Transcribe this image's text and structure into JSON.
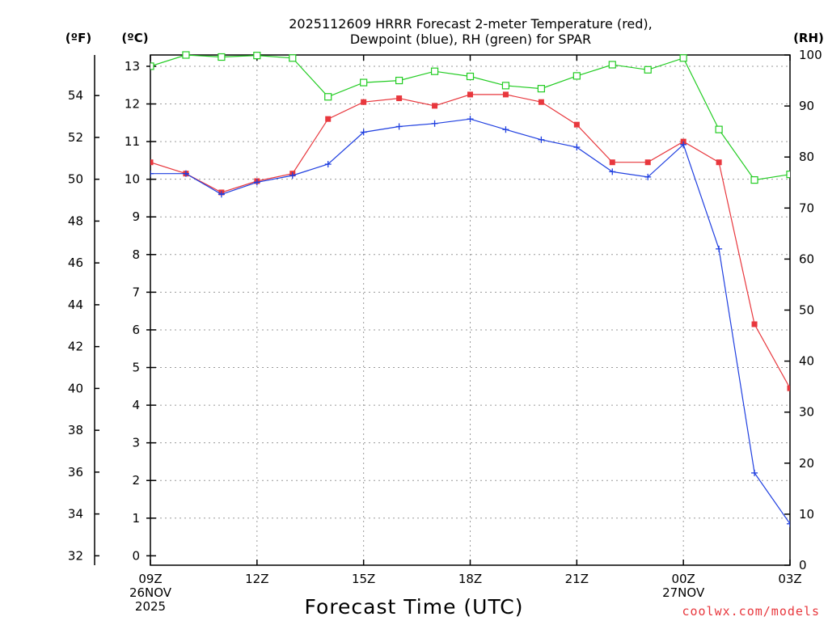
{
  "chart_data": {
    "type": "line",
    "title_lines": [
      "2025112609 HRRR Forecast 2-meter Temperature (red),",
      "Dewpoint (blue), RH (green) for SPAR"
    ],
    "xlabel": "Forecast Time (UTC)",
    "credit": "coolwx.com/models",
    "left_outer_unit": "(ºF)",
    "left_inner_unit": "(ºC)",
    "right_unit": "(RH)",
    "x_range": [
      9,
      27
    ],
    "x_ticks": [
      {
        "x": 9,
        "lines": [
          "09Z",
          "26NOV",
          "2025"
        ]
      },
      {
        "x": 12,
        "lines": [
          "12Z"
        ]
      },
      {
        "x": 15,
        "lines": [
          "15Z"
        ]
      },
      {
        "x": 18,
        "lines": [
          "18Z"
        ]
      },
      {
        "x": 21,
        "lines": [
          "21Z"
        ]
      },
      {
        "x": 24,
        "lines": [
          "00Z",
          "27NOV"
        ]
      },
      {
        "x": 27,
        "lines": [
          "03Z"
        ]
      }
    ],
    "celsius_range": [
      -0.25,
      13.3
    ],
    "celsius_ticks": [
      0,
      1,
      2,
      3,
      4,
      5,
      6,
      7,
      8,
      9,
      10,
      11,
      12,
      13
    ],
    "fahrenheit_ticks": [
      32,
      34,
      36,
      38,
      40,
      42,
      44,
      46,
      48,
      50,
      52,
      54
    ],
    "rh_range": [
      0,
      100
    ],
    "rh_ticks": [
      0,
      10,
      20,
      30,
      40,
      50,
      60,
      70,
      80,
      90,
      100
    ],
    "grid": true,
    "series": [
      {
        "name": "Temperature",
        "color": "#e8373d",
        "marker": "filled-square",
        "axis": "celsius",
        "x": [
          9,
          10,
          11,
          12,
          13,
          14,
          15,
          16,
          17,
          18,
          19,
          20,
          21,
          22,
          23,
          24,
          25,
          26,
          27
        ],
        "values": [
          10.45,
          10.15,
          9.65,
          9.95,
          10.15,
          11.6,
          12.05,
          12.15,
          11.95,
          12.25,
          12.25,
          12.05,
          11.45,
          10.45,
          10.45,
          11.0,
          10.45,
          6.15,
          4.45
        ]
      },
      {
        "name": "Dewpoint",
        "color": "#1f3fe0",
        "marker": "plus",
        "axis": "celsius",
        "x": [
          9,
          10,
          11,
          12,
          13,
          14,
          15,
          16,
          17,
          18,
          19,
          20,
          21,
          22,
          23,
          24,
          25,
          26,
          27
        ],
        "values": [
          10.15,
          10.15,
          9.6,
          9.92,
          10.1,
          10.4,
          11.25,
          11.4,
          11.48,
          11.6,
          11.32,
          11.05,
          10.85,
          10.2,
          10.06,
          10.92,
          8.15,
          2.2,
          0.85
        ]
      },
      {
        "name": "RH",
        "color": "#22cc22",
        "marker": "open-square",
        "axis": "rh",
        "x": [
          9,
          10,
          11,
          12,
          13,
          14,
          15,
          16,
          17,
          18,
          19,
          20,
          21,
          22,
          23,
          24,
          25,
          26,
          27
        ],
        "values": [
          97.8,
          100,
          99.6,
          99.9,
          99.4,
          91.8,
          94.6,
          95.0,
          96.8,
          95.8,
          94.0,
          93.4,
          95.9,
          98.1,
          97.1,
          99.4,
          85.4,
          75.5,
          76.6
        ]
      }
    ]
  }
}
